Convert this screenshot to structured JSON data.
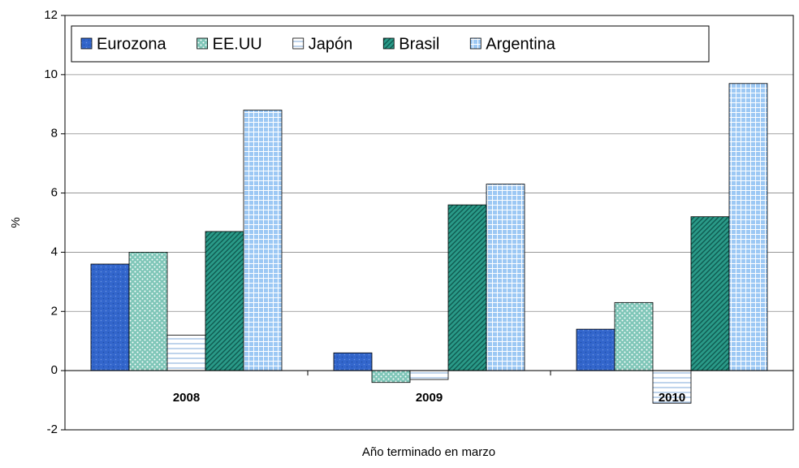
{
  "chart_data": {
    "type": "bar",
    "categories": [
      "2008",
      "2009",
      "2010"
    ],
    "series": [
      {
        "name": "Eurozona",
        "color": "#3366cc",
        "values": [
          3.6,
          0.6,
          1.4
        ]
      },
      {
        "name": "EE.UU",
        "color": "#7fc6b8",
        "values": [
          4.0,
          -0.4,
          2.3
        ]
      },
      {
        "name": "Japón",
        "color": "#ffffff",
        "values": [
          1.2,
          -0.3,
          -1.1
        ]
      },
      {
        "name": "Brasil",
        "color": "#2a9a88",
        "values": [
          4.7,
          5.6,
          5.2
        ]
      },
      {
        "name": "Argentina",
        "color": "#9cc8f4",
        "values": [
          8.8,
          6.3,
          9.7
        ]
      }
    ],
    "ylim": [
      -2,
      12
    ],
    "yticks": [
      -2,
      0,
      2,
      4,
      6,
      8,
      10,
      12
    ],
    "grid": true,
    "y_label": "%",
    "x_label": "Año terminado en marzo",
    "legend": "top-left"
  }
}
